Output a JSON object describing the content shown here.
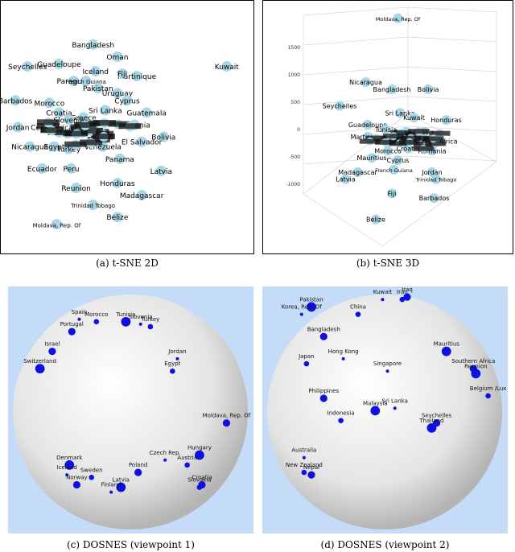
{
  "captions": {
    "a": "(a) t-SNE 2D",
    "b": "(b) t-SNE 3D",
    "c": "(c) DOSNES (viewpoint 1)",
    "d": "(d) DOSNES (viewpoint 2)"
  },
  "colors": {
    "tsne_point": "#a9d6e5",
    "dosnes_point": "#1010e0",
    "dosnes_background": "#c4dcf8",
    "sphere_light": "#ffffff",
    "sphere_dark": "#b4b4b4"
  },
  "chart_data": [
    {
      "type": "scatter",
      "panel": "a",
      "xlim": [
        0,
        100
      ],
      "ylim": [
        0,
        100
      ],
      "points": [
        {
          "label": "Bangladesh",
          "x": 36,
          "y": 84
        },
        {
          "label": "Oman",
          "x": 46,
          "y": 79
        },
        {
          "label": "Seychelles",
          "x": 9,
          "y": 75
        },
        {
          "label": "Guadeloupe",
          "x": 22,
          "y": 76
        },
        {
          "label": "Iceland",
          "x": 37,
          "y": 73
        },
        {
          "label": "Martinique",
          "x": 54,
          "y": 71
        },
        {
          "label": "Fiji",
          "x": 48,
          "y": 72
        },
        {
          "label": "Kuwait",
          "x": 91,
          "y": 75
        },
        {
          "label": "Paraguay",
          "x": 28,
          "y": 69
        },
        {
          "label": "French Guiana",
          "x": 33,
          "y": 69
        },
        {
          "label": "Pakistan",
          "x": 38,
          "y": 66
        },
        {
          "label": "Uruguay",
          "x": 46,
          "y": 64
        },
        {
          "label": "Barbados",
          "x": 4,
          "y": 61
        },
        {
          "label": "Morocco",
          "x": 18,
          "y": 60
        },
        {
          "label": "Cyprus",
          "x": 50,
          "y": 61
        },
        {
          "label": "Croatia",
          "x": 22,
          "y": 56
        },
        {
          "label": "Sri Lanka",
          "x": 41,
          "y": 57
        },
        {
          "label": "Guatemala",
          "x": 58,
          "y": 56
        },
        {
          "label": "Greece",
          "x": 32,
          "y": 54
        },
        {
          "label": "Slovenia",
          "x": 26,
          "y": 53
        },
        {
          "label": "Jordan",
          "x": 5,
          "y": 50
        },
        {
          "label": "Romania",
          "x": 53,
          "y": 51
        },
        {
          "label": "Cent. Africa",
          "x": 19,
          "y": 50
        },
        {
          "label": "Bolivia",
          "x": 65,
          "y": 46
        },
        {
          "label": "El Salvador",
          "x": 56,
          "y": 44
        },
        {
          "label": "Nicaragua",
          "x": 10,
          "y": 42
        },
        {
          "label": "Egypt",
          "x": 20,
          "y": 42
        },
        {
          "label": "Turkey",
          "x": 26,
          "y": 41
        },
        {
          "label": "Venezuela",
          "x": 40,
          "y": 42
        },
        {
          "label": "Panama",
          "x": 47,
          "y": 37
        },
        {
          "label": "Ecuador",
          "x": 15,
          "y": 33
        },
        {
          "label": "Peru",
          "x": 27,
          "y": 33
        },
        {
          "label": "Latvia",
          "x": 64,
          "y": 32
        },
        {
          "label": "Honduras",
          "x": 46,
          "y": 27
        },
        {
          "label": "Reunion",
          "x": 29,
          "y": 25
        },
        {
          "label": "Madagascar",
          "x": 56,
          "y": 22
        },
        {
          "label": "Trinidad Tobago",
          "x": 36,
          "y": 18
        },
        {
          "label": "Belize",
          "x": 46,
          "y": 13
        },
        {
          "label": "Moldava, Rep. Of",
          "x": 21,
          "y": 10
        }
      ]
    },
    {
      "type": "scatter",
      "panel": "b",
      "projection": "3d",
      "z_ticks": [
        1500,
        1000,
        500,
        0,
        -500,
        -1000
      ],
      "points": [
        {
          "label": "Moldava, Rep. Of",
          "x": 51,
          "y": 96
        },
        {
          "label": "Nicaragua",
          "x": 35,
          "y": 69
        },
        {
          "label": "Bangladesh",
          "x": 48,
          "y": 66
        },
        {
          "label": "Bolivia",
          "x": 66,
          "y": 66
        },
        {
          "label": "Seychelles",
          "x": 22,
          "y": 59
        },
        {
          "label": "Sri Lanka",
          "x": 52,
          "y": 56
        },
        {
          "label": "Kuwait",
          "x": 59,
          "y": 54
        },
        {
          "label": "Honduras",
          "x": 75,
          "y": 53
        },
        {
          "label": "Guadeloupe",
          "x": 36,
          "y": 51
        },
        {
          "label": "Tunisia",
          "x": 45,
          "y": 49
        },
        {
          "label": "Martinique",
          "x": 36,
          "y": 46
        },
        {
          "label": "Belarus",
          "x": 55,
          "y": 48
        },
        {
          "label": "Russia",
          "x": 64,
          "y": 48
        },
        {
          "label": "Rep. Africa",
          "x": 72,
          "y": 44
        },
        {
          "label": "Morocco",
          "x": 46,
          "y": 40
        },
        {
          "label": "Croatia",
          "x": 56,
          "y": 41
        },
        {
          "label": "Romania",
          "x": 68,
          "y": 40
        },
        {
          "label": "Mauritius",
          "x": 38,
          "y": 37
        },
        {
          "label": "Cyprus",
          "x": 51,
          "y": 36
        },
        {
          "label": "Madagascar",
          "x": 31,
          "y": 31
        },
        {
          "label": "French Guiana",
          "x": 49,
          "y": 32
        },
        {
          "label": "Jordan",
          "x": 68,
          "y": 31
        },
        {
          "label": "Latvia",
          "x": 25,
          "y": 28
        },
        {
          "label": "Trinidad Tobago",
          "x": 70,
          "y": 28
        },
        {
          "label": "Fiji",
          "x": 48,
          "y": 22
        },
        {
          "label": "Barbados",
          "x": 69,
          "y": 20
        },
        {
          "label": "Belize",
          "x": 40,
          "y": 11
        }
      ]
    },
    {
      "type": "scatter",
      "panel": "c",
      "projection": "sphere",
      "points": [
        {
          "label": "Spain",
          "x": 29,
          "y": 89
        },
        {
          "label": "Morocco",
          "x": 36,
          "y": 88
        },
        {
          "label": "Portugal",
          "x": 26,
          "y": 84
        },
        {
          "label": "Tunisia",
          "x": 48,
          "y": 88
        },
        {
          "label": "Slovenia",
          "x": 54,
          "y": 87
        },
        {
          "label": "Turkey",
          "x": 58,
          "y": 86
        },
        {
          "label": "Israel",
          "x": 18,
          "y": 76
        },
        {
          "label": "Switzerland",
          "x": 13,
          "y": 69
        },
        {
          "label": "Jordan",
          "x": 69,
          "y": 73
        },
        {
          "label": "Egypt",
          "x": 67,
          "y": 68
        },
        {
          "label": "Moldava, Rep. Of",
          "x": 89,
          "y": 47
        },
        {
          "label": "Hungary",
          "x": 78,
          "y": 34
        },
        {
          "label": "Czech Rep.",
          "x": 64,
          "y": 32
        },
        {
          "label": "Austria",
          "x": 73,
          "y": 30
        },
        {
          "label": "Poland",
          "x": 53,
          "y": 27
        },
        {
          "label": "Denmark",
          "x": 25,
          "y": 30
        },
        {
          "label": "Iceland",
          "x": 24,
          "y": 26
        },
        {
          "label": "Sweden",
          "x": 34,
          "y": 25
        },
        {
          "label": "Norway",
          "x": 28,
          "y": 22
        },
        {
          "label": "Latvia",
          "x": 46,
          "y": 21
        },
        {
          "label": "Finland",
          "x": 42,
          "y": 19
        },
        {
          "label": "Slovakia",
          "x": 78,
          "y": 21
        },
        {
          "label": "Croatia",
          "x": 79,
          "y": 22
        }
      ]
    },
    {
      "type": "scatter",
      "panel": "d",
      "projection": "sphere",
      "points": [
        {
          "label": "Kuwait",
          "x": 49,
          "y": 97
        },
        {
          "label": "Iran",
          "x": 57,
          "y": 97
        },
        {
          "label": "Iraq",
          "x": 59,
          "y": 98
        },
        {
          "label": "Pakistan",
          "x": 20,
          "y": 94
        },
        {
          "label": "Korea, Rep. Of",
          "x": 16,
          "y": 91
        },
        {
          "label": "China",
          "x": 39,
          "y": 91
        },
        {
          "label": "Bangladesh",
          "x": 25,
          "y": 82
        },
        {
          "label": "Mauritius",
          "x": 75,
          "y": 76
        },
        {
          "label": "Hong Kong",
          "x": 33,
          "y": 73
        },
        {
          "label": "Japan",
          "x": 18,
          "y": 71
        },
        {
          "label": "Southern Africa",
          "x": 86,
          "y": 69
        },
        {
          "label": "Reunion",
          "x": 87,
          "y": 67
        },
        {
          "label": "Singapore",
          "x": 51,
          "y": 68
        },
        {
          "label": "Belgium /Lux",
          "x": 92,
          "y": 58
        },
        {
          "label": "Philippines",
          "x": 25,
          "y": 57
        },
        {
          "label": "Malaysia",
          "x": 46,
          "y": 52
        },
        {
          "label": "Sri Lanka",
          "x": 54,
          "y": 53
        },
        {
          "label": "Indonesia",
          "x": 32,
          "y": 48
        },
        {
          "label": "Seychelles",
          "x": 71,
          "y": 47
        },
        {
          "label": "Thailand",
          "x": 69,
          "y": 45
        },
        {
          "label": "Australia",
          "x": 17,
          "y": 33
        },
        {
          "label": "New Zealand",
          "x": 17,
          "y": 27
        },
        {
          "label": "Nepal",
          "x": 20,
          "y": 26
        }
      ]
    }
  ]
}
